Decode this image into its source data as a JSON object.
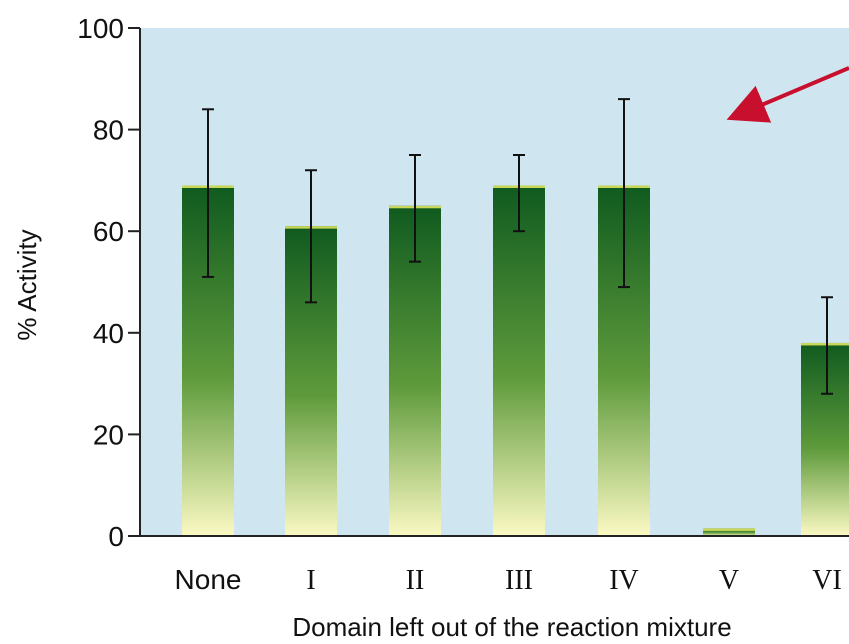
{
  "chart_data": {
    "type": "bar",
    "title": "",
    "xlabel": "Domain left out of the reaction mixture",
    "ylabel": "% Activity",
    "categories": [
      "None",
      "I",
      "II",
      "III",
      "IV",
      "V",
      "VI"
    ],
    "values": [
      69,
      61,
      65,
      69,
      69,
      1.5,
      38
    ],
    "error_bars": [
      {
        "low": 51,
        "high": 84
      },
      {
        "low": 46,
        "high": 72
      },
      {
        "low": 54,
        "high": 75
      },
      {
        "low": 60,
        "high": 75
      },
      {
        "low": 49,
        "high": 86
      },
      null,
      {
        "low": 28,
        "high": 47
      }
    ],
    "ylim": [
      0,
      100
    ],
    "yticks": [
      "0",
      "20",
      "40",
      "60",
      "80",
      "100"
    ],
    "grid": false,
    "legend": "none",
    "annotation": "red arrow pointing to domain V",
    "colors": {
      "plot_background": "#cfe6f1",
      "bar_top": "#0f5a1f",
      "bar_mid": "#5f9b3c",
      "bar_bottom": "#fbf9c3",
      "bar_cap": "#c9d85a",
      "arrow": "#c8102e",
      "axis": "#222222"
    }
  }
}
